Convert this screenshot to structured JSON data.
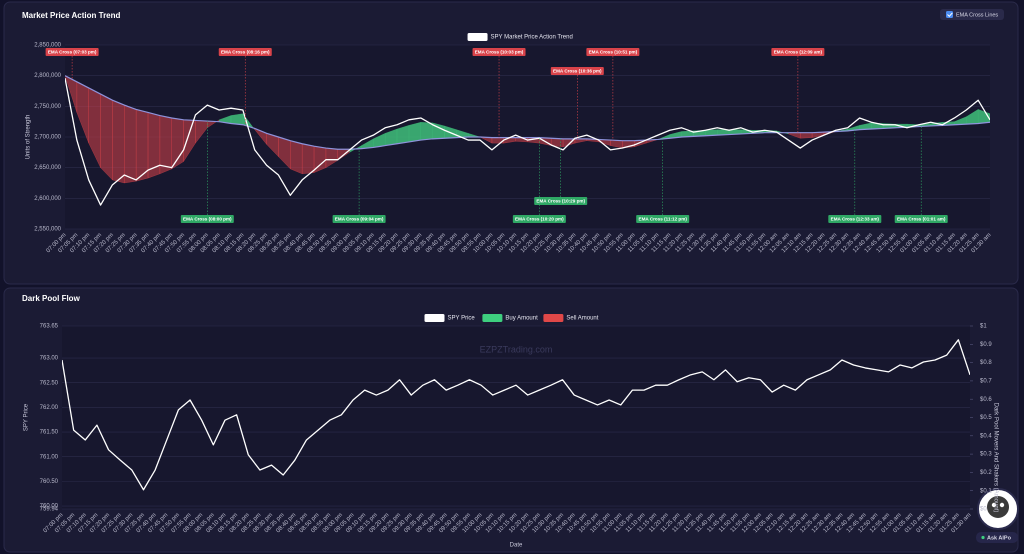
{
  "controls": {
    "ema_cross_toggle": "EMA Cross Lines"
  },
  "assistant_button": "Ask AIPo",
  "chart_data": [
    {
      "type": "line",
      "title": "Market Price Action Trend",
      "y_label": "Units of Strength",
      "categories": [
        "07:00 pm",
        "07:05 pm",
        "07:10 pm",
        "07:15 pm",
        "07:20 pm",
        "07:25 pm",
        "07:30 pm",
        "07:35 pm",
        "07:40 pm",
        "07:45 pm",
        "07:50 pm",
        "07:55 pm",
        "08:00 pm",
        "08:05 pm",
        "08:10 pm",
        "08:15 pm",
        "08:20 pm",
        "08:25 pm",
        "08:30 pm",
        "08:35 pm",
        "08:40 pm",
        "08:45 pm",
        "08:50 pm",
        "08:55 pm",
        "09:00 pm",
        "09:05 pm",
        "09:10 pm",
        "09:15 pm",
        "09:20 pm",
        "09:25 pm",
        "09:30 pm",
        "09:35 pm",
        "09:40 pm",
        "09:45 pm",
        "09:50 pm",
        "09:55 pm",
        "10:00 pm",
        "10:05 pm",
        "10:10 pm",
        "10:15 pm",
        "10:20 pm",
        "10:25 pm",
        "10:30 pm",
        "10:35 pm",
        "10:40 pm",
        "10:45 pm",
        "10:50 pm",
        "10:55 pm",
        "11:00 pm",
        "11:05 pm",
        "11:10 pm",
        "11:15 pm",
        "11:20 pm",
        "11:25 pm",
        "11:30 pm",
        "11:35 pm",
        "11:40 pm",
        "11:45 pm",
        "11:50 pm",
        "11:55 pm",
        "12:00 am",
        "12:05 am",
        "12:10 am",
        "12:15 am",
        "12:20 am",
        "12:25 am",
        "12:30 am",
        "12:35 am",
        "12:40 am",
        "12:45 am",
        "12:50 am",
        "12:55 am",
        "01:00 am",
        "01:05 am",
        "01:10 am",
        "01:15 am",
        "01:20 am",
        "01:25 am",
        "01:30 am"
      ],
      "series": [
        {
          "name": "SPY Market Price Action Trend",
          "color": "#ffffff",
          "values": [
            2796000,
            2695000,
            2630000,
            2589000,
            2622000,
            2638000,
            2630000,
            2646000,
            2654000,
            2650000,
            2679000,
            2736000,
            2752000,
            2744000,
            2747000,
            2744000,
            2679000,
            2654000,
            2638000,
            2605000,
            2630000,
            2646000,
            2663000,
            2663000,
            2679000,
            2695000,
            2703000,
            2715000,
            2720000,
            2728000,
            2731000,
            2720000,
            2711000,
            2703000,
            2695000,
            2695000,
            2679000,
            2695000,
            2703000,
            2695000,
            2698000,
            2687000,
            2679000,
            2698000,
            2703000,
            2695000,
            2679000,
            2682000,
            2687000,
            2695000,
            2703000,
            2711000,
            2715000,
            2708000,
            2711000,
            2715000,
            2711000,
            2715000,
            2708000,
            2711000,
            2708000,
            2695000,
            2682000,
            2695000,
            2703000,
            2711000,
            2715000,
            2731000,
            2724000,
            2720000,
            2720000,
            2715000,
            2720000,
            2724000,
            2720000,
            2731000,
            2744000,
            2760000,
            2728000
          ]
        }
      ],
      "ema_fast": {
        "values": [
          2800000,
          2740000,
          2690000,
          2650000,
          2630000,
          2625000,
          2628000,
          2633000,
          2640000,
          2648000,
          2660000,
          2690000,
          2715000,
          2728000,
          2735000,
          2738000,
          2712000,
          2688000,
          2668000,
          2648000,
          2640000,
          2642000,
          2650000,
          2662000,
          2675000,
          2686000,
          2697000,
          2706000,
          2713000,
          2719000,
          2724000,
          2723000,
          2718000,
          2712000,
          2706000,
          2700000,
          2690000,
          2690000,
          2693000,
          2692000,
          2690000,
          2686000,
          2684000,
          2690000,
          2694000,
          2692000,
          2686000,
          2682000,
          2684000,
          2690000,
          2696000,
          2704000,
          2709000,
          2710000,
          2711000,
          2712000,
          2712000,
          2712000,
          2711000,
          2711000,
          2710000,
          2705000,
          2698000,
          2699000,
          2703000,
          2709000,
          2713000,
          2719000,
          2723000,
          2722000,
          2721000,
          2721000,
          2720000,
          2722000,
          2724000,
          2725000,
          2733000,
          2745000,
          2738000
        ]
      },
      "ema_slow": {
        "color": "#8e93dc",
        "values": [
          2800000,
          2790000,
          2780000,
          2770000,
          2760000,
          2752000,
          2745000,
          2740000,
          2735000,
          2731000,
          2728000,
          2727000,
          2726000,
          2725000,
          2722000,
          2720000,
          2714000,
          2706000,
          2700000,
          2694000,
          2689000,
          2685000,
          2682000,
          2680000,
          2680000,
          2681000,
          2683000,
          2686000,
          2689000,
          2692000,
          2695000,
          2697000,
          2698000,
          2699000,
          2700000,
          2700000,
          2699000,
          2699000,
          2699000,
          2699000,
          2699000,
          2698000,
          2697000,
          2697000,
          2697000,
          2696000,
          2695000,
          2694000,
          2694000,
          2695000,
          2696000,
          2698000,
          2700000,
          2701000,
          2702000,
          2703000,
          2704000,
          2705000,
          2706000,
          2707000,
          2707000,
          2707000,
          2707000,
          2707000,
          2708000,
          2709000,
          2710000,
          2712000,
          2713000,
          2714000,
          2715000,
          2716000,
          2717000,
          2718000,
          2719000,
          2720000,
          2721000,
          2722000,
          2724000
        ]
      },
      "bull_color": "#3fbf7a",
      "bear_color": "#d9434a",
      "annotations": [
        {
          "text": "EMA Cross (07:03 pm)",
          "color": "#d9434a"
        },
        {
          "text": "EMA Cross (08:00 pm)",
          "color": "#2fa865"
        },
        {
          "text": "EMA Cross (08:16 pm)",
          "color": "#d9434a"
        },
        {
          "text": "EMA Cross (09:04 pm)",
          "color": "#2fa865"
        },
        {
          "text": "EMA Cross (10:03 pm)",
          "color": "#d9434a"
        },
        {
          "text": "EMA Cross (10:20 pm)",
          "color": "#2fa865"
        },
        {
          "text": "EMA Cross (10:29 pm)",
          "color": "#2fa865"
        },
        {
          "text": "EMA Cross (10:36 pm)",
          "color": "#d9434a"
        },
        {
          "text": "EMA Cross (10:51 pm)",
          "color": "#d9434a"
        },
        {
          "text": "EMA Cross (11:12 pm)",
          "color": "#2fa865"
        },
        {
          "text": "EMA Cross (12:09 am)",
          "color": "#d9434a"
        },
        {
          "text": "EMA Cross (12:33 am)",
          "color": "#2fa865"
        },
        {
          "text": "EMA Cross (01:01 am)",
          "color": "#2fa865"
        }
      ],
      "ylim": [
        2550000,
        2850000
      ],
      "yticks": [
        {
          "value": 2550000,
          "label": "2,550,000"
        },
        {
          "value": 2600000,
          "label": "2,600,000"
        },
        {
          "value": 2650000,
          "label": "2,650,000"
        },
        {
          "value": 2700000,
          "label": "2,700,000"
        },
        {
          "value": 2750000,
          "label": "2,750,000"
        },
        {
          "value": 2800000,
          "label": "2,800,000"
        },
        {
          "value": 2850000,
          "label": "2,850,000"
        }
      ],
      "grid": true
    },
    {
      "type": "line",
      "title": "Dark Pool Flow",
      "watermark": "EZPZTrading.com",
      "x_label": "Date",
      "y_label": "SPY Price",
      "y2_label": "Dark Pool Movers And Shakers (Amount)",
      "categories": [
        "07:00 pm",
        "07:05 pm",
        "07:10 pm",
        "07:15 pm",
        "07:20 pm",
        "07:25 pm",
        "07:30 pm",
        "07:35 pm",
        "07:40 pm",
        "07:45 pm",
        "07:50 pm",
        "07:55 pm",
        "08:00 pm",
        "08:05 pm",
        "08:10 pm",
        "08:15 pm",
        "08:20 pm",
        "08:25 pm",
        "08:30 pm",
        "08:35 pm",
        "08:40 pm",
        "08:45 pm",
        "08:50 pm",
        "08:55 pm",
        "09:00 pm",
        "09:05 pm",
        "09:10 pm",
        "09:15 pm",
        "09:20 pm",
        "09:25 pm",
        "09:30 pm",
        "09:35 pm",
        "09:40 pm",
        "09:45 pm",
        "09:50 pm",
        "09:55 pm",
        "10:00 pm",
        "10:05 pm",
        "10:10 pm",
        "10:15 pm",
        "10:20 pm",
        "10:25 pm",
        "10:30 pm",
        "10:35 pm",
        "10:40 pm",
        "10:45 pm",
        "10:50 pm",
        "10:55 pm",
        "11:00 pm",
        "11:05 pm",
        "11:10 pm",
        "11:15 pm",
        "11:20 pm",
        "11:25 pm",
        "11:30 pm",
        "11:35 pm",
        "11:40 pm",
        "11:45 pm",
        "11:50 pm",
        "11:55 pm",
        "12:00 am",
        "12:05 am",
        "12:10 am",
        "12:15 am",
        "12:20 am",
        "12:25 am",
        "12:30 am",
        "12:35 am",
        "12:40 am",
        "12:45 am",
        "12:50 am",
        "12:55 am",
        "01:00 am",
        "01:05 am",
        "01:10 am",
        "01:15 am",
        "01:20 am",
        "01:25 am",
        "01:30 am"
      ],
      "series": [
        {
          "name": "SPY Price",
          "color": "#ffffff",
          "values": [
            762.96,
            761.54,
            761.34,
            761.64,
            761.14,
            760.93,
            760.73,
            760.33,
            760.73,
            761.34,
            761.95,
            762.15,
            761.74,
            761.24,
            761.74,
            761.85,
            761.04,
            760.73,
            760.83,
            760.63,
            760.93,
            761.34,
            761.54,
            761.74,
            761.85,
            762.15,
            762.35,
            762.25,
            762.35,
            762.56,
            762.25,
            762.45,
            762.56,
            762.35,
            762.45,
            762.56,
            762.45,
            762.25,
            762.35,
            762.45,
            762.25,
            762.35,
            762.45,
            762.56,
            762.25,
            762.15,
            762.05,
            762.15,
            762.05,
            762.35,
            762.35,
            762.45,
            762.45,
            762.56,
            762.66,
            762.72,
            762.56,
            762.76,
            762.52,
            762.6,
            762.56,
            762.31,
            762.45,
            762.35,
            762.56,
            762.66,
            762.76,
            762.96,
            762.86,
            762.8,
            762.76,
            762.72,
            762.86,
            762.8,
            762.92,
            762.96,
            763.06,
            763.37,
            762.66
          ]
        },
        {
          "name": "Buy Amount",
          "color": "#3ecf7f",
          "axis": "y2",
          "values": [
            null,
            null,
            null,
            null,
            null,
            null,
            null,
            null,
            null,
            null,
            null,
            null,
            null,
            null,
            null,
            null,
            null,
            null,
            null,
            null,
            null,
            null,
            null,
            null,
            null,
            null,
            null,
            null,
            null,
            null,
            null,
            null,
            null,
            null,
            null,
            null,
            null,
            null,
            null,
            null,
            null,
            null,
            null,
            null,
            null,
            null,
            null,
            null,
            null,
            null,
            null,
            null,
            null,
            null,
            null,
            null,
            null,
            null,
            null,
            null,
            null,
            null,
            null,
            null,
            null,
            null,
            null,
            null,
            null,
            null,
            null,
            null,
            null,
            null,
            null,
            null,
            null,
            null,
            null
          ]
        },
        {
          "name": "Sell Amount",
          "color": "#e04848",
          "axis": "y2",
          "values": [
            null,
            null,
            null,
            null,
            null,
            null,
            null,
            null,
            null,
            null,
            null,
            null,
            null,
            null,
            null,
            null,
            null,
            null,
            null,
            null,
            null,
            null,
            null,
            null,
            null,
            null,
            null,
            null,
            null,
            null,
            null,
            null,
            null,
            null,
            null,
            null,
            null,
            null,
            null,
            null,
            null,
            null,
            null,
            null,
            null,
            null,
            null,
            null,
            null,
            null,
            null,
            null,
            null,
            null,
            null,
            null,
            null,
            null,
            null,
            null,
            null,
            null,
            null,
            null,
            null,
            null,
            null,
            null,
            null,
            null,
            null,
            null,
            null,
            null,
            null,
            null,
            null,
            null,
            null
          ]
        }
      ],
      "ylim": [
        759.94,
        763.65
      ],
      "yticks": [
        759.94,
        {
          "value": 760,
          "label": "760.00"
        },
        {
          "value": 760.5,
          "label": "760.50"
        },
        {
          "value": 761,
          "label": "761.00"
        },
        {
          "value": 761.5,
          "label": "761.50"
        },
        {
          "value": 762,
          "label": "762.00"
        },
        {
          "value": 762.5,
          "label": "762.50"
        },
        {
          "value": 763,
          "label": "763.00"
        },
        763.65
      ],
      "y2lim": [
        0,
        1
      ],
      "y2ticks": [
        {
          "value": 0,
          "label": "$0"
        },
        {
          "value": 0.1,
          "label": "$0.1"
        },
        {
          "value": 0.2,
          "label": "$0.2"
        },
        {
          "value": 0.3,
          "label": "$0.3"
        },
        {
          "value": 0.4,
          "label": "$0.4"
        },
        {
          "value": 0.5,
          "label": "$0.5"
        },
        {
          "value": 0.6,
          "label": "$0.6"
        },
        {
          "value": 0.7,
          "label": "$0.7"
        },
        {
          "value": 0.8,
          "label": "$0.8"
        },
        {
          "value": 0.9,
          "label": "$0.9"
        },
        {
          "value": 1,
          "label": "$1"
        }
      ],
      "grid": true
    }
  ]
}
